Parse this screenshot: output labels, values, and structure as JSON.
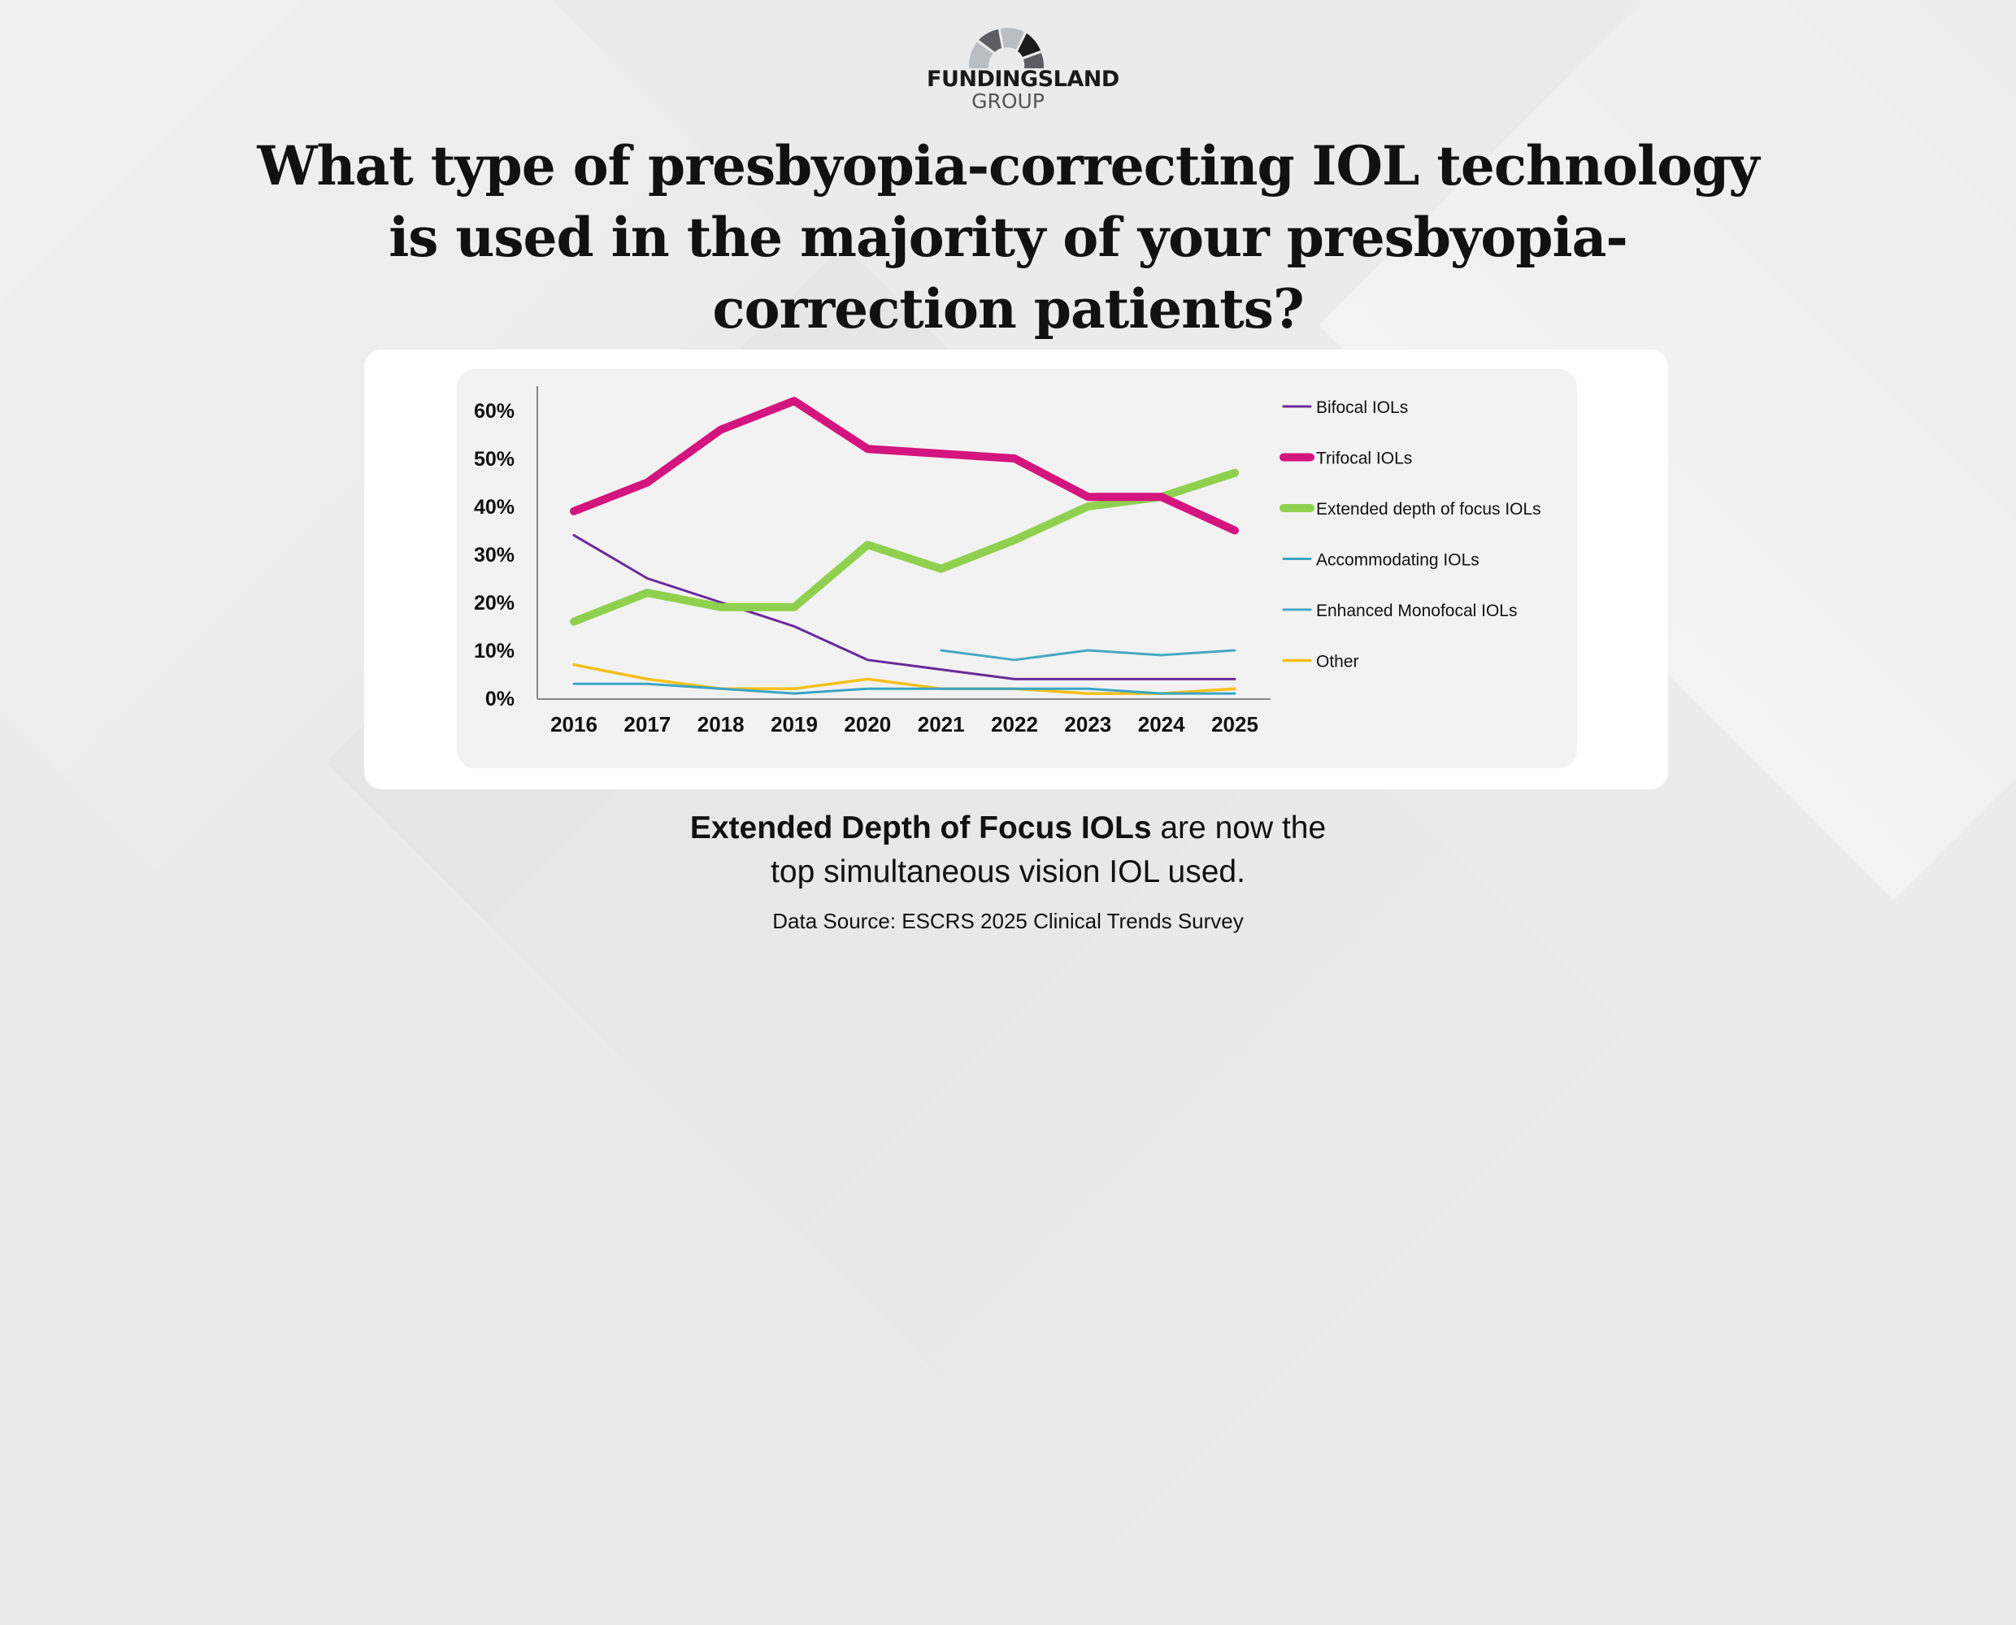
{
  "brand": {
    "name": "FUNDINGSLAND",
    "sub": "GROUP"
  },
  "title": "What type of presbyopia-correcting IOL technology is used in the majority of your presbyopia-correction patients?",
  "note": {
    "bold": "Extended Depth of Focus IOLs",
    "rest_line1": " are now the",
    "line2": "top simultaneous vision IOL used."
  },
  "source": "Data Source: ESCRS 2025 Clinical Trends Survey",
  "chart_data": {
    "type": "line",
    "title": "",
    "xlabel": "",
    "ylabel": "",
    "categories": [
      "2016",
      "2017",
      "2018",
      "2019",
      "2020",
      "2021",
      "2022",
      "2023",
      "2024",
      "2025"
    ],
    "ylim": [
      0,
      60
    ],
    "yticks": [
      "0%",
      "10%",
      "20%",
      "30%",
      "40%",
      "50%",
      "60%"
    ],
    "grid": false,
    "legend_position": "right",
    "series": [
      {
        "name": "Bifocal IOLs",
        "color": "#6a2a9a",
        "values": [
          34,
          25,
          20,
          15,
          8,
          6,
          4,
          4,
          4,
          4
        ]
      },
      {
        "name": "Trifocal IOLs",
        "color": "#d4147f",
        "values": [
          39,
          45,
          56,
          62,
          52,
          51,
          50,
          42,
          42,
          35
        ]
      },
      {
        "name": "Extended depth of focus IOLs",
        "color": "#8fd14f",
        "values": [
          16,
          22,
          19,
          19,
          32,
          27,
          33,
          40,
          42,
          47
        ]
      },
      {
        "name": "Accommodating IOLs",
        "color": "#3aa5c4",
        "values": [
          3,
          3,
          2,
          1,
          2,
          2,
          2,
          2,
          1,
          1
        ]
      },
      {
        "name": "Enhanced Monofocal IOLs",
        "color": "#46a9c2",
        "values": [
          null,
          null,
          null,
          null,
          null,
          10,
          8,
          10,
          9,
          10
        ]
      },
      {
        "name": "Other",
        "color": "#f5c01a",
        "values": [
          7,
          4,
          2,
          2,
          4,
          2,
          2,
          1,
          1,
          2
        ]
      }
    ]
  }
}
